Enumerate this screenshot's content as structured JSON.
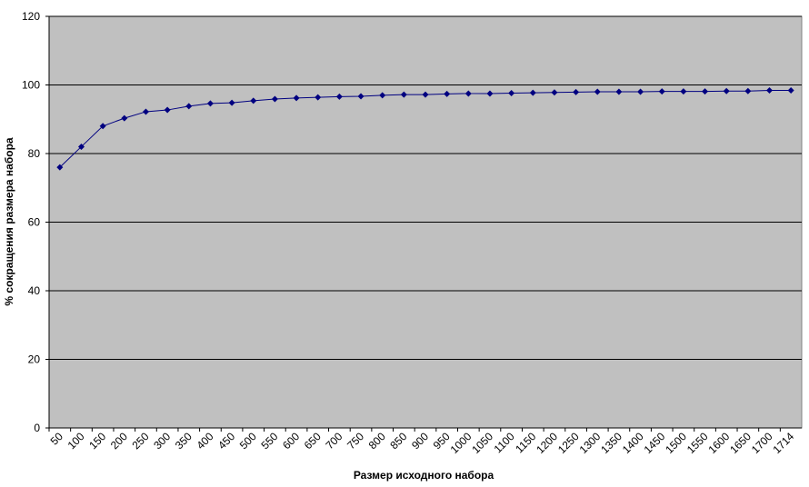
{
  "chart_data": {
    "type": "line",
    "x_label": "Размер исходного набора",
    "y_label": "% сокращения размера набора",
    "categories": [
      "50",
      "100",
      "150",
      "200",
      "250",
      "300",
      "350",
      "400",
      "450",
      "500",
      "550",
      "600",
      "650",
      "700",
      "750",
      "800",
      "850",
      "900",
      "950",
      "1000",
      "1050",
      "1100",
      "1150",
      "1200",
      "1250",
      "1300",
      "1350",
      "1400",
      "1450",
      "1500",
      "1550",
      "1600",
      "1650",
      "1700",
      "1714"
    ],
    "values": [
      76.0,
      82.0,
      88.0,
      90.3,
      92.2,
      92.7,
      93.8,
      94.6,
      94.8,
      95.4,
      95.9,
      96.2,
      96.4,
      96.6,
      96.7,
      97.0,
      97.2,
      97.2,
      97.4,
      97.5,
      97.5,
      97.6,
      97.7,
      97.8,
      97.9,
      98.0,
      98.0,
      98.0,
      98.1,
      98.1,
      98.1,
      98.2,
      98.2,
      98.4,
      98.4
    ],
    "color": "#000080",
    "ylim": [
      0,
      120
    ],
    "yticks": [
      0,
      20,
      40,
      60,
      80,
      100,
      120
    ],
    "grid": true
  }
}
